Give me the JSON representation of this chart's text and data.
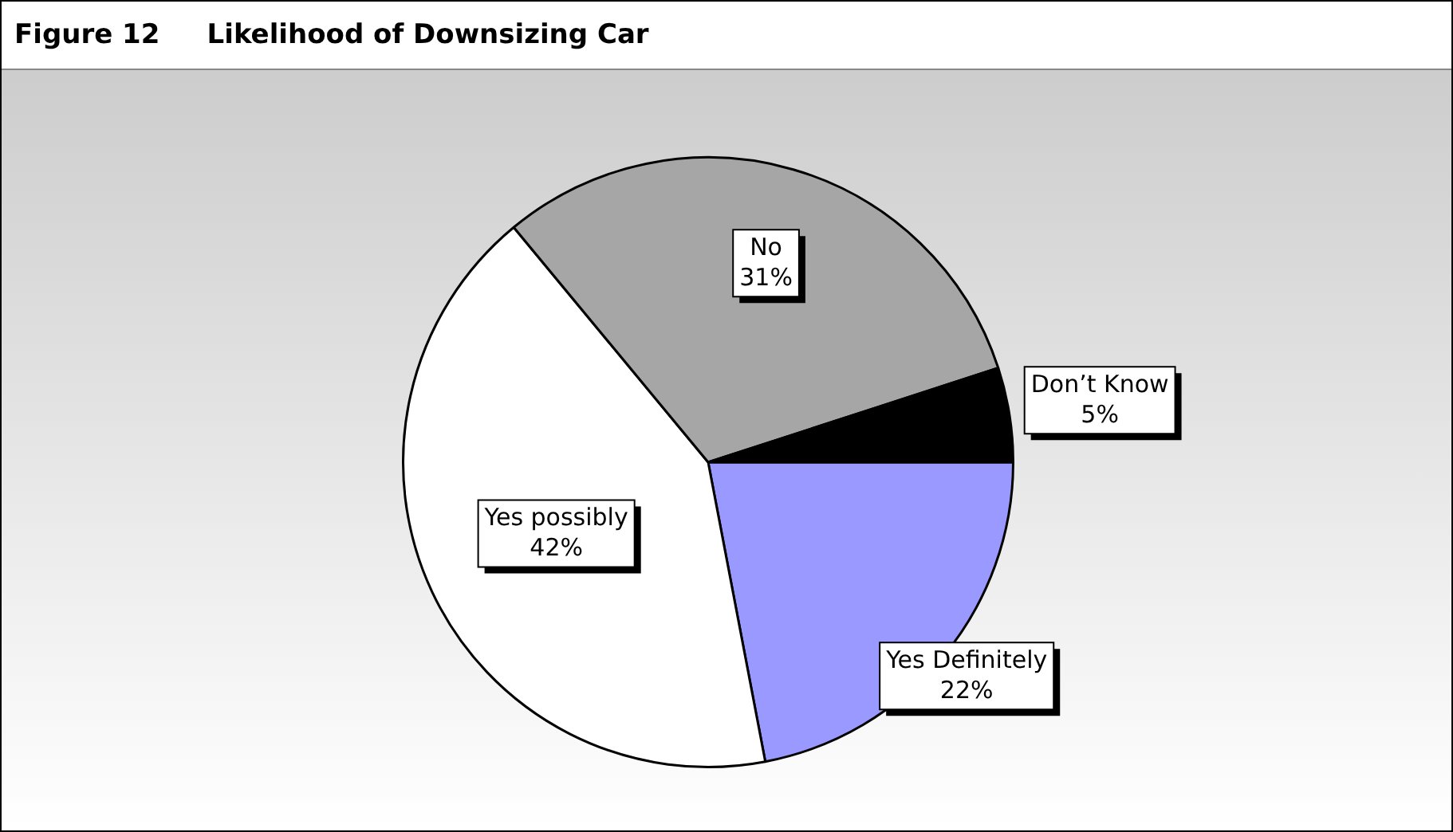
{
  "chart_data": {
    "type": "pie",
    "title": "Figure 12     Likelihood of Downsizing Car",
    "categories": [
      "Yes Definitely",
      "Yes possibly",
      "No",
      "Don’t Know"
    ],
    "values": [
      22,
      42,
      31,
      5
    ],
    "value_labels": [
      "22%",
      "42%",
      "31%",
      "5%"
    ],
    "colors": [
      "#9999ff",
      "#ffffff",
      "#a6a6a6",
      "#000000"
    ]
  }
}
